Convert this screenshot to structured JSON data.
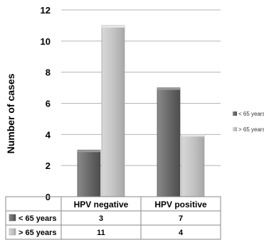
{
  "chart_data": {
    "type": "bar",
    "ylabel": "Number of cases",
    "ylim": [
      0,
      12
    ],
    "yticks": [
      "0",
      "2",
      "4",
      "6",
      "8",
      "10",
      "12"
    ],
    "categories": [
      "HPV negative",
      "HPV positive"
    ],
    "series": [
      {
        "name": "< 65 years",
        "values": [
          3,
          7
        ],
        "color": "#6e6e6e",
        "table_label": "< 65 years",
        "legend_label": "< 65 years"
      },
      {
        "name": "> 65 years",
        "values": [
          11,
          4
        ],
        "color": "#cccccc",
        "table_label": "> 65 years",
        "legend_label": "> 65 years"
      }
    ],
    "table_values": [
      [
        "3",
        "7"
      ],
      [
        "11",
        "4"
      ]
    ],
    "grid": true,
    "legend_position": "right"
  }
}
